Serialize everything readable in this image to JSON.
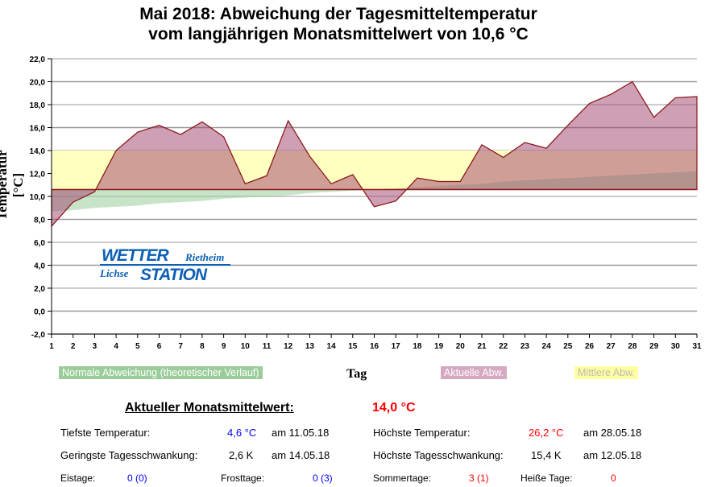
{
  "chart_data": {
    "type": "area",
    "title": [
      "Mai 2018: Abweichung der Tagesmitteltemperatur",
      "vom langjährigen Monatsmittelwert von 10,6 °C"
    ],
    "xlabel": "Tag",
    "ylabel": "Temperatur [°C]",
    "ylim": [
      -2,
      22
    ],
    "xlim": [
      1,
      31
    ],
    "yticks": [
      "-2,0",
      "0,0",
      "2,0",
      "4,0",
      "6,0",
      "8,0",
      "10,0",
      "12,0",
      "14,0",
      "16,0",
      "18,0",
      "20,0",
      "22,0"
    ],
    "x": [
      1,
      2,
      3,
      4,
      5,
      6,
      7,
      8,
      9,
      10,
      11,
      12,
      13,
      14,
      15,
      16,
      17,
      18,
      19,
      20,
      21,
      22,
      23,
      24,
      25,
      26,
      27,
      28,
      29,
      30,
      31
    ],
    "baseline": 10.6,
    "mean_band": 14.0,
    "series": [
      {
        "name": "Aktuelle Abw.",
        "color": "#b56a8f",
        "values": [
          7.4,
          9.5,
          10.4,
          14.0,
          15.6,
          16.2,
          15.4,
          16.5,
          15.2,
          11.1,
          11.8,
          16.6,
          13.5,
          11.1,
          11.9,
          9.1,
          9.6,
          11.6,
          11.3,
          11.3,
          14.5,
          13.4,
          14.7,
          14.2,
          16.2,
          18.1,
          18.9,
          20.0,
          16.9,
          18.6,
          18.7
        ]
      },
      {
        "name": "Normale Abweichung (theoretischer Verlauf)",
        "color": "#9acd9a",
        "values": [
          8.7,
          8.8,
          9.0,
          9.1,
          9.2,
          9.4,
          9.5,
          9.6,
          9.8,
          9.9,
          10.0,
          10.1,
          10.3,
          10.4,
          10.5,
          10.6,
          10.7,
          10.8,
          10.9,
          11.0,
          11.1,
          11.3,
          11.4,
          11.5,
          11.6,
          11.7,
          11.8,
          11.9,
          12.0,
          12.1,
          12.2
        ]
      },
      {
        "name": "Mittlere Abw.",
        "color": "#ffffb0"
      }
    ],
    "legend": "bottom"
  },
  "logo": {
    "line1": "WETTER",
    "line1b": "Rietheim",
    "line2a": "Lichse",
    "line2": "STATION"
  },
  "stats": {
    "month_label": "Aktueller Monatsmittelwert:",
    "month_value": "14,0 °C",
    "min_label": "Tiefste Temperatur:",
    "min_value": "4,6 °C",
    "min_date": "am 11.05.18",
    "max_label": "Höchste Temperatur:",
    "max_value": "26,2 °C",
    "max_date": "am 28.05.18",
    "minrange_label": "Geringste Tagesschwankung:",
    "minrange_value": "2,6 K",
    "minrange_date": "am 14.05.18",
    "maxrange_label": "Höchste Tagesschwankung:",
    "maxrange_value": "15,4 K",
    "maxrange_date": "am 12.05.18",
    "eis_label": "Eistage:",
    "eis_value": "0 (0)",
    "frost_label": "Frosttage:",
    "frost_value": "0 (3)",
    "sommer_label": "Sommertage:",
    "sommer_value": "3 (1)",
    "heiss_label": "Heiße Tage:",
    "heiss_value": "0"
  },
  "colors": {
    "blue": "#0000ff",
    "red": "#ff0000",
    "line": "#8b1a1a"
  }
}
